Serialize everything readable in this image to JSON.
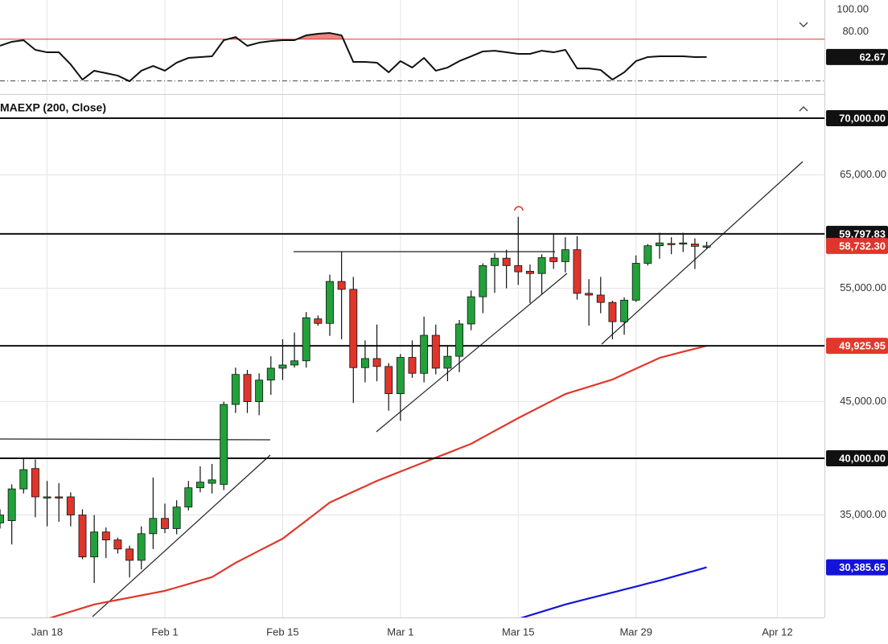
{
  "chart_data": [
    {
      "type": "line",
      "x": [
        0,
        1,
        2,
        3,
        4,
        5,
        6,
        7,
        8,
        9,
        10,
        11,
        12,
        13,
        14,
        15,
        16,
        17,
        18,
        19,
        20,
        21,
        22,
        23,
        24,
        25,
        26,
        27,
        28,
        29,
        30,
        31,
        32,
        33,
        34,
        35,
        36,
        37,
        38,
        39,
        40,
        41,
        42,
        43,
        44,
        45,
        46,
        47,
        48,
        49,
        50,
        51,
        52,
        53,
        54,
        55,
        56,
        57,
        58,
        59,
        60
      ],
      "values": [
        70.4,
        73.2,
        74.3,
        67.6,
        65.9,
        65.9,
        57.5,
        46.9,
        53.1,
        51.4,
        49.7,
        45.8,
        53.1,
        56.4,
        53.1,
        58.7,
        62.0,
        62.6,
        63.1,
        74.3,
        76.5,
        70.4,
        72.6,
        73.7,
        74.3,
        74.3,
        77.7,
        78.8,
        79.3,
        77.7,
        59.2,
        59.2,
        58.7,
        52.0,
        59.8,
        55.3,
        62.0,
        53.1,
        55.3,
        59.8,
        63.1,
        66.5,
        67.0,
        65.9,
        64.8,
        64.8,
        67.0,
        65.9,
        67.6,
        54.7,
        54.7,
        53.6,
        46.9,
        52.0,
        59.8,
        62.6,
        63.1,
        63.1,
        63.1,
        62.6,
        62.67
      ],
      "value_labels": [
        null,
        null,
        null,
        null,
        null,
        null,
        null,
        null,
        null,
        null,
        null,
        null,
        null,
        null,
        null,
        null,
        null,
        null,
        null,
        null,
        null,
        null,
        null,
        null,
        null,
        null,
        null,
        null,
        null,
        null,
        null,
        null,
        null,
        null,
        null,
        null,
        null,
        null,
        null,
        null,
        null,
        null,
        null,
        null,
        null,
        null,
        null,
        null,
        null,
        null,
        null,
        null,
        null,
        null,
        null,
        null,
        null,
        null,
        null,
        null,
        "62.67"
      ],
      "color": "#111111",
      "xlim": [
        0,
        70
      ],
      "ylim": [
        38,
        100
      ],
      "yticks": [
        {
          "value": 100,
          "label": "100.00"
        },
        {
          "value": 80,
          "label": "80.00"
        }
      ],
      "overbought": 75,
      "overbought_color": "#e0352b",
      "lower_level": 46
    },
    {
      "type": "candlestick",
      "title": "MAEXP (200, Close)",
      "x": [
        0,
        1,
        2,
        3,
        4,
        5,
        6,
        7,
        8,
        9,
        10,
        11,
        12,
        13,
        14,
        15,
        16,
        17,
        18,
        19,
        20,
        21,
        22,
        23,
        24,
        25,
        26,
        27,
        28,
        29,
        30,
        31,
        32,
        33,
        34,
        35,
        36,
        37,
        38,
        39,
        40,
        41,
        42,
        43,
        44,
        45,
        46,
        47,
        48,
        49,
        50,
        51,
        52,
        53,
        54,
        55,
        56,
        57,
        58,
        59,
        60
      ],
      "open": [
        34300,
        34500,
        37300,
        39100,
        36500,
        36600,
        36600,
        35000,
        31300,
        33500,
        32800,
        32000,
        31000,
        33350,
        34700,
        33800,
        35700,
        37400,
        37800,
        37700,
        44750,
        47400,
        45000,
        46900,
        47950,
        48230,
        48600,
        52300,
        51900,
        55600,
        54900,
        48000,
        48800,
        48100,
        45700,
        48900,
        47500,
        50850,
        47950,
        49000,
        51850,
        54250,
        57000,
        57650,
        57000,
        56500,
        56300,
        57700,
        57350,
        58400,
        54550,
        54400,
        53750,
        52050,
        53950,
        57200,
        58750,
        58950,
        58900,
        58900,
        58700
      ],
      "high": [
        35500,
        37700,
        40000,
        39900,
        38000,
        37800,
        37000,
        35500,
        35000,
        33900,
        33000,
        32300,
        34000,
        38300,
        36000,
        36300,
        38000,
        39300,
        39500,
        45000,
        48000,
        47800,
        47500,
        49000,
        50500,
        51100,
        52900,
        52600,
        56200,
        58200,
        56000,
        50400,
        51800,
        48400,
        49200,
        50400,
        52500,
        51800,
        50000,
        52200,
        54800,
        57200,
        58100,
        58400,
        61300,
        57100,
        58000,
        59800,
        59500,
        59600,
        55800,
        56000,
        53900,
        54200,
        57900,
        58900,
        59900,
        59500,
        59900,
        59400,
        59100
      ],
      "low": [
        33800,
        32400,
        36900,
        34800,
        34000,
        34400,
        34000,
        31100,
        29000,
        31200,
        31600,
        29500,
        30200,
        32000,
        33400,
        33300,
        35400,
        37000,
        36900,
        37200,
        44000,
        44000,
        43800,
        45600,
        46900,
        48000,
        48000,
        51700,
        50800,
        50500,
        44900,
        46700,
        46800,
        44200,
        43300,
        47100,
        46700,
        47400,
        46800,
        47600,
        51300,
        52800,
        54600,
        55000,
        55300,
        53700,
        54500,
        56700,
        56400,
        54000,
        51700,
        52800,
        50500,
        50900,
        53800,
        57000,
        57600,
        58000,
        58200,
        56700,
        58500
      ],
      "close": [
        35000,
        37300,
        39000,
        36600,
        36600,
        36500,
        35000,
        31300,
        33500,
        32800,
        32000,
        31000,
        33350,
        34700,
        33800,
        35700,
        37400,
        37900,
        38100,
        44750,
        47400,
        45000,
        46900,
        47950,
        48230,
        48600,
        52400,
        51900,
        55600,
        54900,
        48000,
        48800,
        48100,
        45700,
        48900,
        47500,
        50850,
        47950,
        49000,
        51850,
        54250,
        57000,
        57650,
        57000,
        56450,
        56300,
        57700,
        57350,
        58400,
        54550,
        54400,
        53750,
        52050,
        53950,
        57200,
        58750,
        59000,
        58900,
        59000,
        58700,
        58732.3
      ],
      "up_color": "#22a13a",
      "down_color": "#e0352b",
      "series": [
        {
          "color": "#e2372b",
          "values": [
            null,
            null,
            null,
            null,
            25830,
            26150,
            26470,
            26790,
            27110,
            27310,
            27510,
            27710,
            27910,
            28110,
            28310,
            28610,
            28910,
            29220,
            29520,
            30150,
            30780,
            31310,
            31850,
            32380,
            32910,
            33710,
            34500,
            35300,
            36100,
            36580,
            37060,
            37530,
            38010,
            38420,
            38830,
            39240,
            39650,
            40060,
            40460,
            40870,
            41280,
            41850,
            42420,
            42980,
            43550,
            44080,
            44610,
            45140,
            45670,
            45990,
            46310,
            46630,
            46950,
            47430,
            47910,
            48380,
            48860,
            49130,
            49400,
            49660,
            49925.95
          ],
          "value_labels": [
            null,
            null,
            null,
            null,
            null,
            null,
            null,
            null,
            null,
            null,
            null,
            null,
            null,
            null,
            null,
            null,
            null,
            null,
            null,
            null,
            null,
            null,
            null,
            null,
            null,
            null,
            null,
            null,
            null,
            null,
            null,
            null,
            null,
            null,
            null,
            null,
            null,
            null,
            null,
            null,
            null,
            null,
            null,
            null,
            null,
            null,
            null,
            null,
            null,
            null,
            null,
            null,
            null,
            null,
            null,
            null,
            null,
            null,
            null,
            null,
            "49,925.95"
          ]
        },
        {
          "color": "#1414d8",
          "values": [
            null,
            null,
            null,
            null,
            null,
            null,
            null,
            null,
            null,
            null,
            null,
            null,
            null,
            null,
            null,
            null,
            null,
            null,
            null,
            null,
            null,
            null,
            null,
            null,
            null,
            null,
            null,
            null,
            null,
            null,
            null,
            null,
            null,
            null,
            null,
            null,
            null,
            null,
            null,
            null,
            null,
            null,
            null,
            null,
            25830,
            26150,
            26470,
            26790,
            27110,
            27370,
            27640,
            27900,
            28160,
            28430,
            28690,
            28960,
            29220,
            29510,
            29800,
            30090,
            30385.65
          ],
          "value_labels": [
            null,
            null,
            null,
            null,
            null,
            null,
            null,
            null,
            null,
            null,
            null,
            null,
            null,
            null,
            null,
            null,
            null,
            null,
            null,
            null,
            null,
            null,
            null,
            null,
            null,
            null,
            null,
            null,
            null,
            null,
            null,
            null,
            null,
            null,
            null,
            null,
            null,
            null,
            null,
            null,
            null,
            null,
            null,
            null,
            null,
            null,
            null,
            null,
            null,
            null,
            null,
            null,
            null,
            null,
            null,
            null,
            null,
            null,
            null,
            null,
            "30,385.65"
          ]
        }
      ],
      "levels": [
        {
          "value": 70000,
          "label": "70,000.00"
        },
        {
          "value": 59797.83,
          "label": "59,797.83"
        },
        49925.95,
        {
          "value": 40000,
          "label": "40,000.00"
        }
      ],
      "last_price": {
        "value": 58732.3,
        "label": "58,732.30"
      },
      "xlim": [
        0,
        70
      ],
      "xticks": [
        {
          "value": 4,
          "label": "Jan 18"
        },
        {
          "value": 14,
          "label": "Feb 1"
        },
        {
          "value": 24,
          "label": "Feb 15"
        },
        {
          "value": 34,
          "label": "Mar 1"
        },
        {
          "value": 44,
          "label": "Mar 15"
        },
        {
          "value": 54,
          "label": "Mar 29"
        },
        {
          "value": 66,
          "label": "Apr 12"
        }
      ],
      "ylim": [
        25960,
        72130
      ],
      "yticks": [
        {
          "value": 35000,
          "label": "35,000.00"
        },
        {
          "value": 45000,
          "label": "45,000.00"
        },
        {
          "value": 55000,
          "label": "55,000.00"
        },
        {
          "value": 65000,
          "label": "65,000.00"
        }
      ],
      "grid": true
    }
  ]
}
